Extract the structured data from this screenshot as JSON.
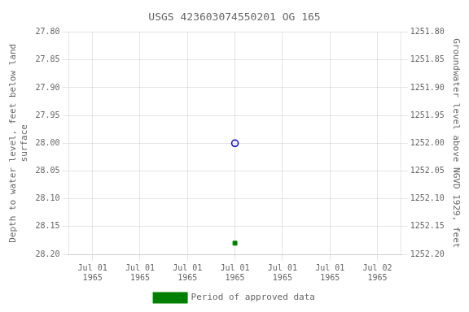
{
  "chart_data": {
    "type": "scatter",
    "title": "USGS 423603074550201 OG 165",
    "categories": [
      "Jul 01\n1965",
      "Jul 01\n1965",
      "Jul 01\n1965",
      "Jul 01\n1965",
      "Jul 01\n1965",
      "Jul 01\n1965",
      "Jul 02\n1965"
    ],
    "series": [
      {
        "color": "#0000cd",
        "marker": "open circle",
        "values": [
          null,
          null,
          null,
          28.0,
          null,
          null,
          null
        ]
      },
      {
        "name": "Period of approved data",
        "color": "#008000",
        "marker": "square",
        "values": [
          null,
          null,
          null,
          28.18,
          null,
          null,
          null
        ]
      }
    ],
    "y_label": "Depth to water level, feet below land\nsurface",
    "y2_label": "Groundwater level above NGVD 1929, feet",
    "ylim": [
      28.2,
      27.8
    ],
    "yticks": [
      {
        "value": 27.8,
        "label": "27.80"
      },
      {
        "value": 27.85,
        "label": "27.85"
      },
      {
        "value": 27.9,
        "label": "27.90"
      },
      {
        "value": 27.95,
        "label": "27.95"
      },
      {
        "value": 28.0,
        "label": "28.00"
      },
      {
        "value": 28.05,
        "label": "28.05"
      },
      {
        "value": 28.1,
        "label": "28.10"
      },
      {
        "value": 28.15,
        "label": "28.15"
      },
      {
        "value": 28.2,
        "label": "28.20"
      }
    ],
    "y2lim": [
      1252.2,
      1251.8
    ],
    "y2ticks": [
      {
        "value": 1252.2,
        "label": "1252.20"
      },
      {
        "value": 1252.15,
        "label": "1252.15"
      },
      {
        "value": 1252.1,
        "label": "1252.10"
      },
      {
        "value": 1252.05,
        "label": "1252.05"
      },
      {
        "value": 1252.0,
        "label": "1252.00"
      },
      {
        "value": 1251.95,
        "label": "1251.95"
      },
      {
        "value": 1251.9,
        "label": "1251.90"
      },
      {
        "value": 1251.85,
        "label": "1251.85"
      },
      {
        "value": 1251.8,
        "label": "1251.80"
      }
    ],
    "grid": true,
    "legend": "bottom"
  }
}
